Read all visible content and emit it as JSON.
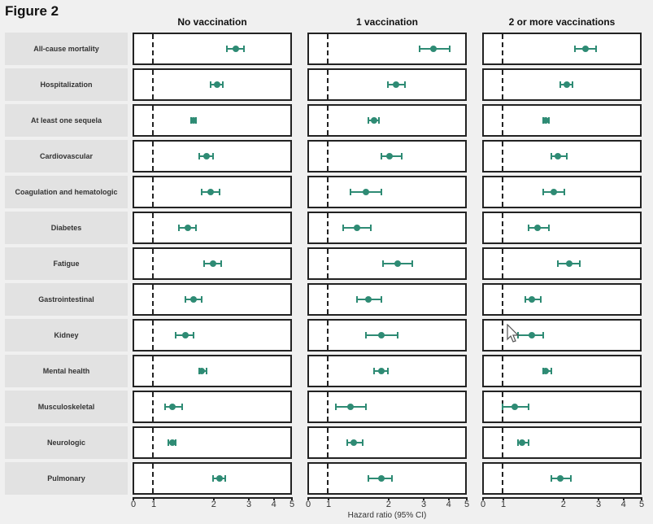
{
  "figure": {
    "title": "Figure 2"
  },
  "chart_data": {
    "type": "forest",
    "title": "Figure 2",
    "xlabel": "Hazard ratio (95% CI)",
    "xscale": "log",
    "xlim": [
      0,
      5
    ],
    "xticks": [
      "0",
      "1",
      "2",
      "3",
      "4",
      "5"
    ],
    "reference_line": 1,
    "marker_color": "#2e8b74",
    "categories": [
      "All-cause mortality",
      "Hospitalization",
      "At least one sequela",
      "Cardiovascular",
      "Coagulation and hematologic",
      "Diabetes",
      "Fatigue",
      "Gastrointestinal",
      "Kidney",
      "Mental health",
      "Musculoskeletal",
      "Neurologic",
      "Pulmonary"
    ],
    "series": [
      {
        "name": "No vaccination",
        "values": [
          2.6,
          2.1,
          1.6,
          1.85,
          1.95,
          1.5,
          2.0,
          1.6,
          1.45,
          1.75,
          1.25,
          1.25,
          2.15
        ],
        "lower": [
          2.35,
          1.95,
          1.55,
          1.7,
          1.75,
          1.35,
          1.8,
          1.45,
          1.3,
          1.7,
          1.15,
          1.2,
          2.0
        ],
        "upper": [
          2.85,
          2.25,
          1.65,
          2.0,
          2.15,
          1.65,
          2.2,
          1.75,
          1.6,
          1.85,
          1.4,
          1.3,
          2.3
        ]
      },
      {
        "name": "1 vaccination",
        "values": [
          3.4,
          2.2,
          1.7,
          2.05,
          1.55,
          1.4,
          2.25,
          1.6,
          1.85,
          1.85,
          1.3,
          1.35,
          1.85
        ],
        "lower": [
          2.9,
          2.0,
          1.6,
          1.85,
          1.3,
          1.2,
          1.9,
          1.4,
          1.55,
          1.7,
          1.1,
          1.25,
          1.6
        ],
        "upper": [
          4.1,
          2.45,
          1.8,
          2.35,
          1.85,
          1.65,
          2.65,
          1.85,
          2.25,
          2.0,
          1.55,
          1.5,
          2.1
        ]
      },
      {
        "name": "2 or more vaccinations",
        "values": [
          2.6,
          2.1,
          1.65,
          1.9,
          1.8,
          1.5,
          2.15,
          1.4,
          1.4,
          1.65,
          1.15,
          1.25,
          1.95
        ],
        "lower": [
          2.3,
          1.95,
          1.6,
          1.75,
          1.6,
          1.35,
          1.9,
          1.3,
          1.2,
          1.6,
          1.0,
          1.2,
          1.75
        ],
        "upper": [
          2.95,
          2.25,
          1.7,
          2.1,
          2.05,
          1.7,
          2.45,
          1.55,
          1.6,
          1.75,
          1.35,
          1.35,
          2.2
        ]
      }
    ]
  },
  "columns": [
    {
      "title": "No vaccination"
    },
    {
      "title": "1 vaccination"
    },
    {
      "title": "2 or more vaccinations"
    }
  ]
}
